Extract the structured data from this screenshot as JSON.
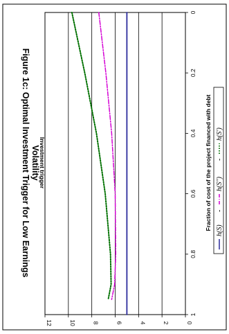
{
  "chart_data": {
    "type": "line",
    "title_line1": "Figure 1c: Optimal Investment Trigger for Low Earnings",
    "title_line2": "Volatility",
    "xlabel": "Fraction of cost of the project financed with debt",
    "ylabel": "Investment trigger",
    "xlim": [
      0,
      1
    ],
    "ylim": [
      0,
      12
    ],
    "x_ticks": [
      "0",
      "0.2",
      "0.4",
      "0.6",
      "0.8",
      "1"
    ],
    "y_ticks": [
      "0",
      "2",
      "4",
      "6",
      "8",
      "10",
      "12"
    ],
    "grid": "horizontal major gridlines",
    "legend_position": "right",
    "series": [
      {
        "name": "h(S)",
        "color": "#2b2b9c",
        "style": "solid",
        "x": [
          0,
          1
        ],
        "y": [
          5.0,
          5.0
        ]
      },
      {
        "name": "h(S'')",
        "color": "#d400d4",
        "style": "dash-dot",
        "x": [
          0,
          0.2,
          0.4,
          0.6,
          0.8,
          0.9,
          0.95
        ],
        "y": [
          7.4,
          6.8,
          6.3,
          6.0,
          5.95,
          6.05,
          6.3
        ]
      },
      {
        "name": "h(S')",
        "color": "#007000",
        "style": "dotted",
        "x": [
          0,
          0.2,
          0.4,
          0.6,
          0.8,
          0.9,
          0.95
        ],
        "y": [
          9.7,
          8.6,
          7.6,
          6.85,
          6.4,
          6.35,
          6.6
        ]
      }
    ]
  },
  "legend": {
    "item1": "h(S)",
    "sep1": "-",
    "item2": "h(S'')",
    "sep2": "-",
    "item3": "h(S')"
  }
}
